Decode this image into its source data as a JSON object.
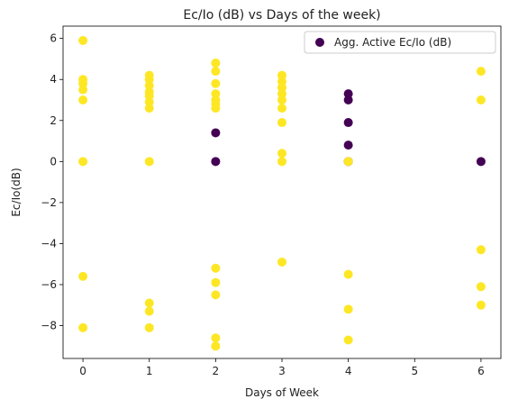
{
  "chart_data": {
    "type": "scatter",
    "title": "Ec/Io (dB) vs Days of the week)",
    "xlabel": "Days of Week",
    "ylabel": "Ec/Io(dB)",
    "xlim": [
      -0.3,
      6.3
    ],
    "ylim": [
      -9.6,
      6.6
    ],
    "xticks": [
      0,
      1,
      2,
      3,
      4,
      5,
      6
    ],
    "yticks": [
      -8,
      -6,
      -4,
      -2,
      0,
      2,
      4,
      6
    ],
    "grid": false,
    "legend": {
      "placement": "top-right",
      "entries": [
        "Agg. Active Ec/Io (dB)"
      ]
    },
    "colors": {
      "yellow": "#fde725",
      "purple": "#440154",
      "axis": "#000000"
    },
    "series": [
      {
        "name": "Agg. Active Ec/Io (dB)",
        "points": [
          {
            "x": 0,
            "y": 5.9,
            "c": "yellow"
          },
          {
            "x": 0,
            "y": 4.0,
            "c": "yellow"
          },
          {
            "x": 0,
            "y": 3.8,
            "c": "yellow"
          },
          {
            "x": 0,
            "y": 3.5,
            "c": "yellow"
          },
          {
            "x": 0,
            "y": 3.0,
            "c": "yellow"
          },
          {
            "x": 0,
            "y": 0.0,
            "c": "yellow"
          },
          {
            "x": 0,
            "y": -5.6,
            "c": "yellow"
          },
          {
            "x": 0,
            "y": -8.1,
            "c": "yellow"
          },
          {
            "x": 1,
            "y": 4.2,
            "c": "yellow"
          },
          {
            "x": 1,
            "y": 4.0,
            "c": "yellow"
          },
          {
            "x": 1,
            "y": 3.7,
            "c": "yellow"
          },
          {
            "x": 1,
            "y": 3.4,
            "c": "yellow"
          },
          {
            "x": 1,
            "y": 3.2,
            "c": "yellow"
          },
          {
            "x": 1,
            "y": 2.9,
            "c": "yellow"
          },
          {
            "x": 1,
            "y": 2.6,
            "c": "yellow"
          },
          {
            "x": 1,
            "y": 0.0,
            "c": "yellow"
          },
          {
            "x": 1,
            "y": -6.9,
            "c": "yellow"
          },
          {
            "x": 1,
            "y": -7.3,
            "c": "yellow"
          },
          {
            "x": 1,
            "y": -8.1,
            "c": "yellow"
          },
          {
            "x": 2,
            "y": 4.8,
            "c": "yellow"
          },
          {
            "x": 2,
            "y": 4.4,
            "c": "yellow"
          },
          {
            "x": 2,
            "y": 3.8,
            "c": "yellow"
          },
          {
            "x": 2,
            "y": 3.3,
            "c": "yellow"
          },
          {
            "x": 2,
            "y": 3.0,
            "c": "yellow"
          },
          {
            "x": 2,
            "y": 2.8,
            "c": "yellow"
          },
          {
            "x": 2,
            "y": 2.6,
            "c": "yellow"
          },
          {
            "x": 2,
            "y": 1.4,
            "c": "purple"
          },
          {
            "x": 2,
            "y": 0.0,
            "c": "purple"
          },
          {
            "x": 2,
            "y": -5.2,
            "c": "yellow"
          },
          {
            "x": 2,
            "y": -5.9,
            "c": "yellow"
          },
          {
            "x": 2,
            "y": -6.5,
            "c": "yellow"
          },
          {
            "x": 2,
            "y": -8.6,
            "c": "yellow"
          },
          {
            "x": 2,
            "y": -9.0,
            "c": "yellow"
          },
          {
            "x": 3,
            "y": 4.2,
            "c": "yellow"
          },
          {
            "x": 3,
            "y": 3.9,
            "c": "yellow"
          },
          {
            "x": 3,
            "y": 3.6,
            "c": "yellow"
          },
          {
            "x": 3,
            "y": 3.3,
            "c": "yellow"
          },
          {
            "x": 3,
            "y": 3.0,
            "c": "yellow"
          },
          {
            "x": 3,
            "y": 2.6,
            "c": "yellow"
          },
          {
            "x": 3,
            "y": 1.9,
            "c": "yellow"
          },
          {
            "x": 3,
            "y": 0.4,
            "c": "yellow"
          },
          {
            "x": 3,
            "y": 0.0,
            "c": "yellow"
          },
          {
            "x": 3,
            "y": -4.9,
            "c": "yellow"
          },
          {
            "x": 4,
            "y": 3.3,
            "c": "purple"
          },
          {
            "x": 4,
            "y": 3.0,
            "c": "purple"
          },
          {
            "x": 4,
            "y": 1.9,
            "c": "purple"
          },
          {
            "x": 4,
            "y": 0.8,
            "c": "purple"
          },
          {
            "x": 4,
            "y": 0.0,
            "c": "purple"
          },
          {
            "x": 4,
            "y": 0.0,
            "c": "yellow"
          },
          {
            "x": 4,
            "y": -5.5,
            "c": "yellow"
          },
          {
            "x": 4,
            "y": -7.2,
            "c": "yellow"
          },
          {
            "x": 4,
            "y": -8.7,
            "c": "yellow"
          },
          {
            "x": 6,
            "y": 4.4,
            "c": "yellow"
          },
          {
            "x": 6,
            "y": 3.0,
            "c": "yellow"
          },
          {
            "x": 6,
            "y": 0.0,
            "c": "purple"
          },
          {
            "x": 6,
            "y": -4.3,
            "c": "yellow"
          },
          {
            "x": 6,
            "y": -6.1,
            "c": "yellow"
          },
          {
            "x": 6,
            "y": -7.0,
            "c": "yellow"
          }
        ]
      }
    ]
  }
}
